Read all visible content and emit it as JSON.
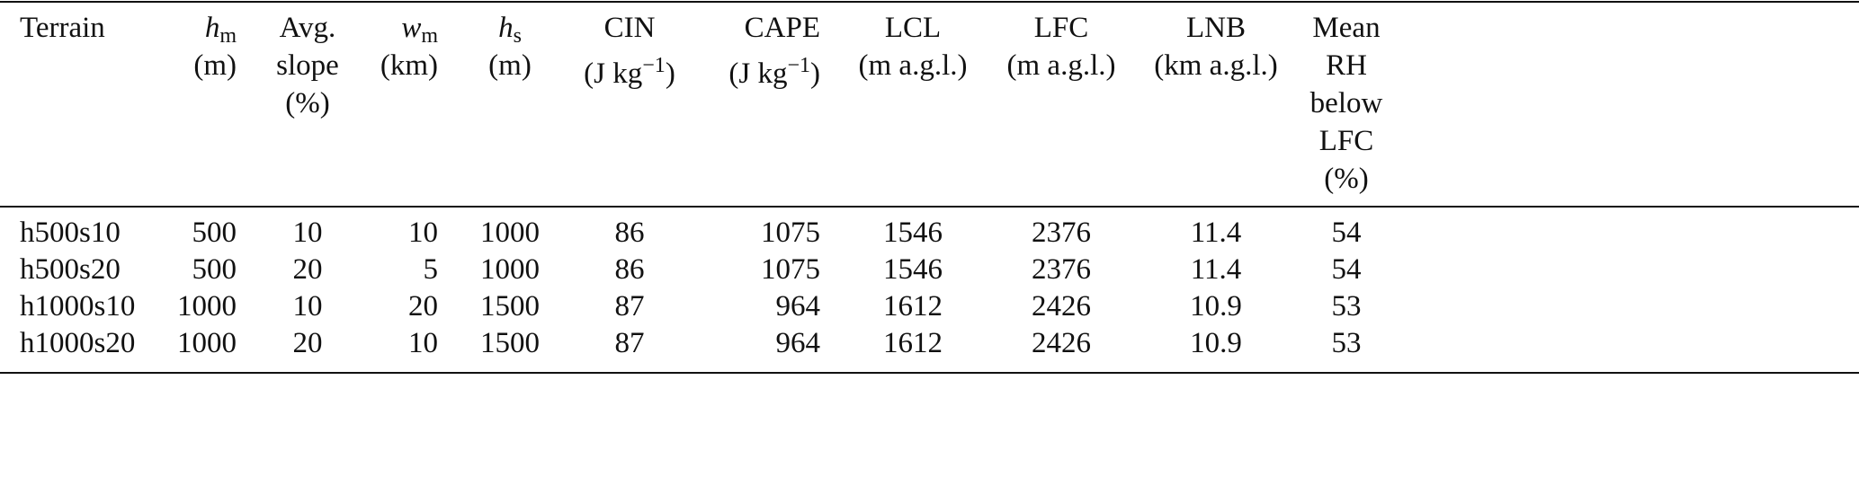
{
  "table": {
    "columns": [
      {
        "align": "left",
        "lines": [
          [
            {
              "t": "Terrain"
            }
          ]
        ]
      },
      {
        "align": "right",
        "lines": [
          [
            {
              "t": "h",
              "s": "italic"
            },
            {
              "t": "m",
              "s": "sub"
            }
          ],
          [
            {
              "t": "(m)"
            }
          ]
        ]
      },
      {
        "align": "center",
        "lines": [
          [
            {
              "t": "Avg."
            }
          ],
          [
            {
              "t": "slope"
            }
          ],
          [
            {
              "t": "(%)"
            }
          ]
        ]
      },
      {
        "align": "right",
        "lines": [
          [
            {
              "t": "w",
              "s": "italic"
            },
            {
              "t": "m",
              "s": "sub"
            }
          ],
          [
            {
              "t": "(km)"
            }
          ]
        ]
      },
      {
        "align": "center",
        "lines": [
          [
            {
              "t": "h",
              "s": "italic"
            },
            {
              "t": "s",
              "s": "sub"
            }
          ],
          [
            {
              "t": "(m)"
            }
          ]
        ]
      },
      {
        "align": "center",
        "lines": [
          [
            {
              "t": "CIN"
            }
          ],
          [
            {
              "t": "(J kg"
            },
            {
              "t": "−1",
              "s": "sup"
            },
            {
              "t": ")"
            }
          ]
        ]
      },
      {
        "align": "right",
        "lines": [
          [
            {
              "t": "CAPE"
            }
          ],
          [
            {
              "t": "(J kg"
            },
            {
              "t": "−1",
              "s": "sup"
            },
            {
              "t": ")"
            }
          ]
        ]
      },
      {
        "align": "center",
        "lines": [
          [
            {
              "t": "LCL"
            }
          ],
          [
            {
              "t": "(m a.g.l.)"
            }
          ]
        ]
      },
      {
        "align": "center",
        "lines": [
          [
            {
              "t": "LFC"
            }
          ],
          [
            {
              "t": "(m a.g.l.)"
            }
          ]
        ]
      },
      {
        "align": "center",
        "lines": [
          [
            {
              "t": "LNB"
            }
          ],
          [
            {
              "t": "(km a.g.l.)"
            }
          ]
        ]
      },
      {
        "align": "center",
        "lines": [
          [
            {
              "t": "Mean"
            }
          ],
          [
            {
              "t": "RH"
            }
          ],
          [
            {
              "t": "below"
            }
          ],
          [
            {
              "t": "LFC"
            }
          ],
          [
            {
              "t": "(%)"
            }
          ]
        ]
      }
    ],
    "rows": [
      [
        "h500s10",
        500,
        10,
        10,
        1000,
        86,
        1075,
        1546,
        2376,
        11.4,
        54
      ],
      [
        "h500s20",
        500,
        20,
        5,
        1000,
        86,
        1075,
        1546,
        2376,
        11.4,
        54
      ],
      [
        "h1000s10",
        1000,
        10,
        20,
        1500,
        87,
        964,
        1612,
        2426,
        10.9,
        53
      ],
      [
        "h1000s20",
        1000,
        20,
        10,
        1500,
        87,
        964,
        1612,
        2426,
        10.9,
        53
      ]
    ]
  }
}
